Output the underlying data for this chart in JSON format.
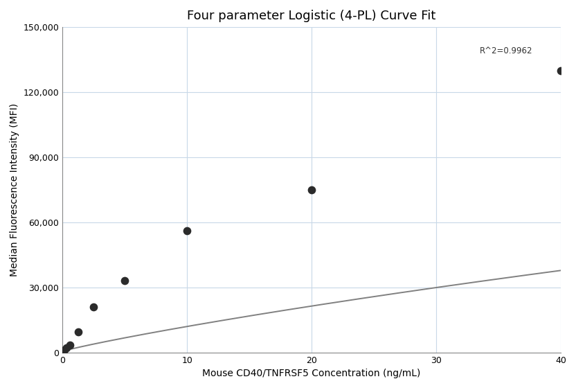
{
  "title": "Four parameter Logistic (4-PL) Curve Fit",
  "xlabel": "Mouse CD40/TNFRSF5 Concentration (ng/mL)",
  "ylabel": "Median Fluorescence Intensity (MFI)",
  "r_squared": "R^2=0.9962",
  "data_points_x": [
    0.156,
    0.313,
    0.625,
    1.25,
    2.5,
    5.0,
    10.0,
    20.0,
    40.0
  ],
  "data_points_y": [
    1200,
    2000,
    3500,
    9500,
    21000,
    33000,
    56000,
    75000,
    130000
  ],
  "xlim": [
    0,
    40
  ],
  "ylim": [
    0,
    150000
  ],
  "yticks": [
    0,
    30000,
    60000,
    90000,
    120000,
    150000
  ],
  "xticks": [
    0,
    10,
    20,
    30,
    40
  ],
  "dot_color": "#2b2b2b",
  "dot_size": 55,
  "line_color": "#808080",
  "line_width": 1.4,
  "background_color": "#ffffff",
  "grid_color": "#c8d8e8",
  "title_fontsize": 13,
  "label_fontsize": 10,
  "tick_fontsize": 9,
  "annotation_fontsize": 8.5,
  "r2_x": 33.5,
  "r2_y": 137000
}
